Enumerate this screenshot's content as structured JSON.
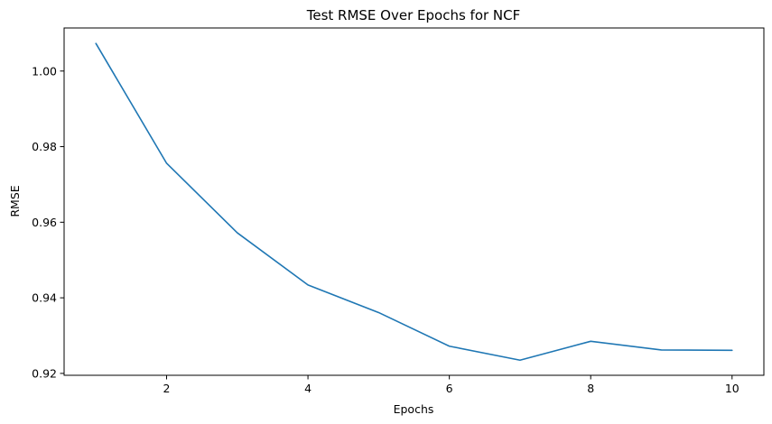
{
  "chart_data": {
    "type": "line",
    "title": "Test RMSE Over Epochs for NCF",
    "xlabel": "Epochs",
    "ylabel": "RMSE",
    "xlim": [
      0.55,
      10.45
    ],
    "ylim": [
      0.9195,
      1.0114
    ],
    "xticks": [
      2,
      4,
      6,
      8,
      10
    ],
    "yticks": [
      0.92,
      0.94,
      0.96,
      0.98,
      1.0
    ],
    "ytick_labels": [
      "0.92",
      "0.94",
      "0.96",
      "0.98",
      "1.00"
    ],
    "xtick_labels": [
      "2",
      "4",
      "6",
      "8",
      "10"
    ],
    "grid": false,
    "series": [
      {
        "color": "#1f77b4",
        "x": [
          1,
          2,
          3,
          4,
          5,
          6,
          7,
          8,
          9,
          10
        ],
        "y": [
          1.0073,
          0.9756,
          0.9572,
          0.9434,
          0.9361,
          0.9272,
          0.9235,
          0.9285,
          0.9262,
          0.9261
        ]
      }
    ]
  }
}
